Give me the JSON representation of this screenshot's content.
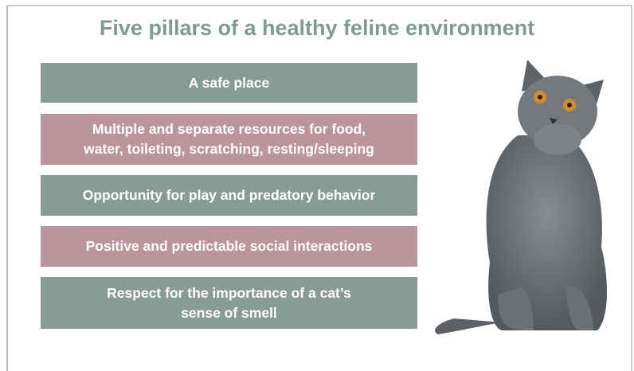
{
  "title": "Five pillars of a healthy feline environment",
  "pillars": [
    {
      "lines": [
        "A safe place"
      ],
      "color": "#869c94"
    },
    {
      "lines": [
        "Multiple and separate resources for food,",
        "water, toileting, scratching, resting/sleeping"
      ],
      "color": "#ba959d"
    },
    {
      "lines": [
        "Opportunity for play and predatory behavior"
      ],
      "color": "#869c94"
    },
    {
      "lines": [
        "Positive and predictable social interactions"
      ],
      "color": "#ba959d"
    },
    {
      "lines": [
        "Respect for the importance of a cat’s",
        "sense of smell"
      ],
      "color": "#869c94"
    }
  ]
}
